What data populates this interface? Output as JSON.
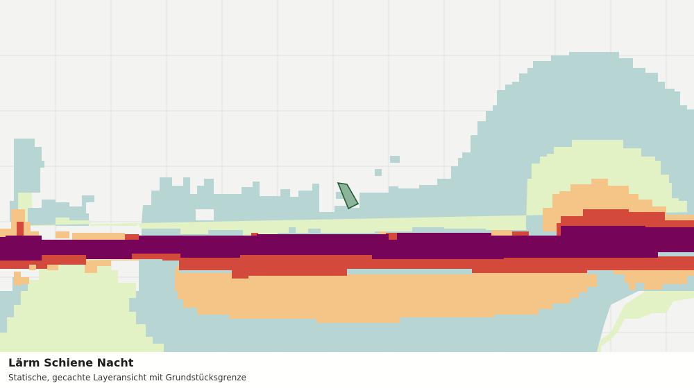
{
  "map": {
    "layer": "Lärm Schiene Nacht",
    "colors": {
      "background": "#f3f4f2",
      "grid": "#dfe1df",
      "level_1": "#b7d6d3",
      "level_2": "#e2f2c4",
      "level_3": "#f4c586",
      "level_4": "#d34a3c",
      "level_5": "#760559",
      "parcel_fill": "#8bb49a",
      "parcel_stroke": "#1f5a2c"
    }
  },
  "legend": {
    "title": "Lärm Schiene Nacht",
    "subtitle": "Statische, gecachte Layeransicht mit Grundstücksgrenze"
  }
}
